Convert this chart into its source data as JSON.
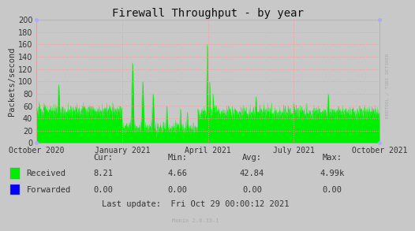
{
  "title": "Firewall Throughput - by year",
  "ylabel": "Packets/second",
  "bg_color": "#C8C8C8",
  "plot_bg_color": "#C8C8C8",
  "grid_color_h": "#FF9999",
  "grid_color_v": "#FF9999",
  "yticks": [
    0,
    20,
    40,
    60,
    80,
    100,
    120,
    140,
    160,
    180,
    200
  ],
  "ylim": [
    0,
    200
  ],
  "xtick_labels": [
    "October 2020",
    "January 2021",
    "April 2021",
    "July 2021",
    "October 2021"
  ],
  "legend_received": "Received",
  "legend_forwarded": "Forwarded",
  "received_color": "#00EE00",
  "forwarded_color": "#0000FF",
  "cur_received": "8.21",
  "min_received": "4.66",
  "avg_received": "42.84",
  "max_received": "4.99k",
  "cur_forwarded": "0.00",
  "min_forwarded": "0.00",
  "avg_forwarded": "0.00",
  "max_forwarded": "0.00",
  "last_update": "Last update:  Fri Oct 29 00:00:12 2021",
  "munin_label": "Munin 2.0.33-1",
  "watermark": "RRDTOOL / TOBI OETIKER",
  "title_fontsize": 10,
  "axis_label_fontsize": 7.5,
  "tick_fontsize": 7,
  "stats_fontsize": 7.5,
  "corner_dot_color": "#AAAAFF",
  "spine_color": "#AAAAAA"
}
